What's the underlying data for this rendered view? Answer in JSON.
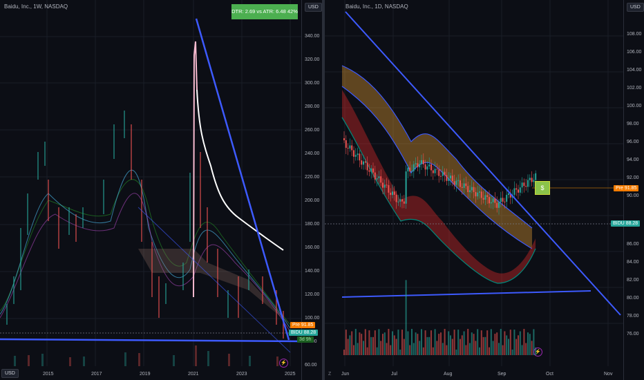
{
  "left": {
    "title": "Baidu, Inc., 1W, NASDAQ",
    "currency_top": "USD",
    "currency_bottom": "USD",
    "dtr_label": "DTR: 2.69 vs ATR: 6.48 42%",
    "y_ticks": [
      "340.00",
      "320.00",
      "300.00",
      "280.00",
      "260.00",
      "240.00",
      "220.00",
      "200.00",
      "180.00",
      "160.00",
      "140.00",
      "120.00",
      "100.00",
      "80.00",
      "60.00"
    ],
    "x_ticks": [
      "2015",
      "2017",
      "2019",
      "2021",
      "2023",
      "2025"
    ],
    "pre_tag": {
      "label": "Pre",
      "value": "91.85"
    },
    "bidu_tag": {
      "label": "BIDU",
      "value": "88.28"
    },
    "extra_tag": "3d 9h"
  },
  "right": {
    "title": "Baidu, Inc., 1D, NASDAQ",
    "currency_top": "USD",
    "y_ticks": [
      "108.00",
      "106.00",
      "104.00",
      "102.00",
      "100.00",
      "98.00",
      "96.00",
      "94.00",
      "92.00",
      "90.00",
      "88.00",
      "86.00",
      "84.00",
      "82.00",
      "80.00",
      "78.00",
      "76.00"
    ],
    "x_ticks": [
      "Jun",
      "Jul",
      "Aug",
      "Sep",
      "Oct",
      "Nov"
    ],
    "pre_tag": {
      "label": "Pre",
      "value": "91.85"
    },
    "bidu_tag": {
      "label": "BIDU",
      "value": "88.28"
    },
    "dollar_icon": "$",
    "bolt_icon": "⚡",
    "z_icon": "Z"
  },
  "colors": {
    "trendline": "#3d5afe",
    "up": "#26a69a",
    "down": "#ef5350",
    "dtr_bg": "#4caf50"
  }
}
